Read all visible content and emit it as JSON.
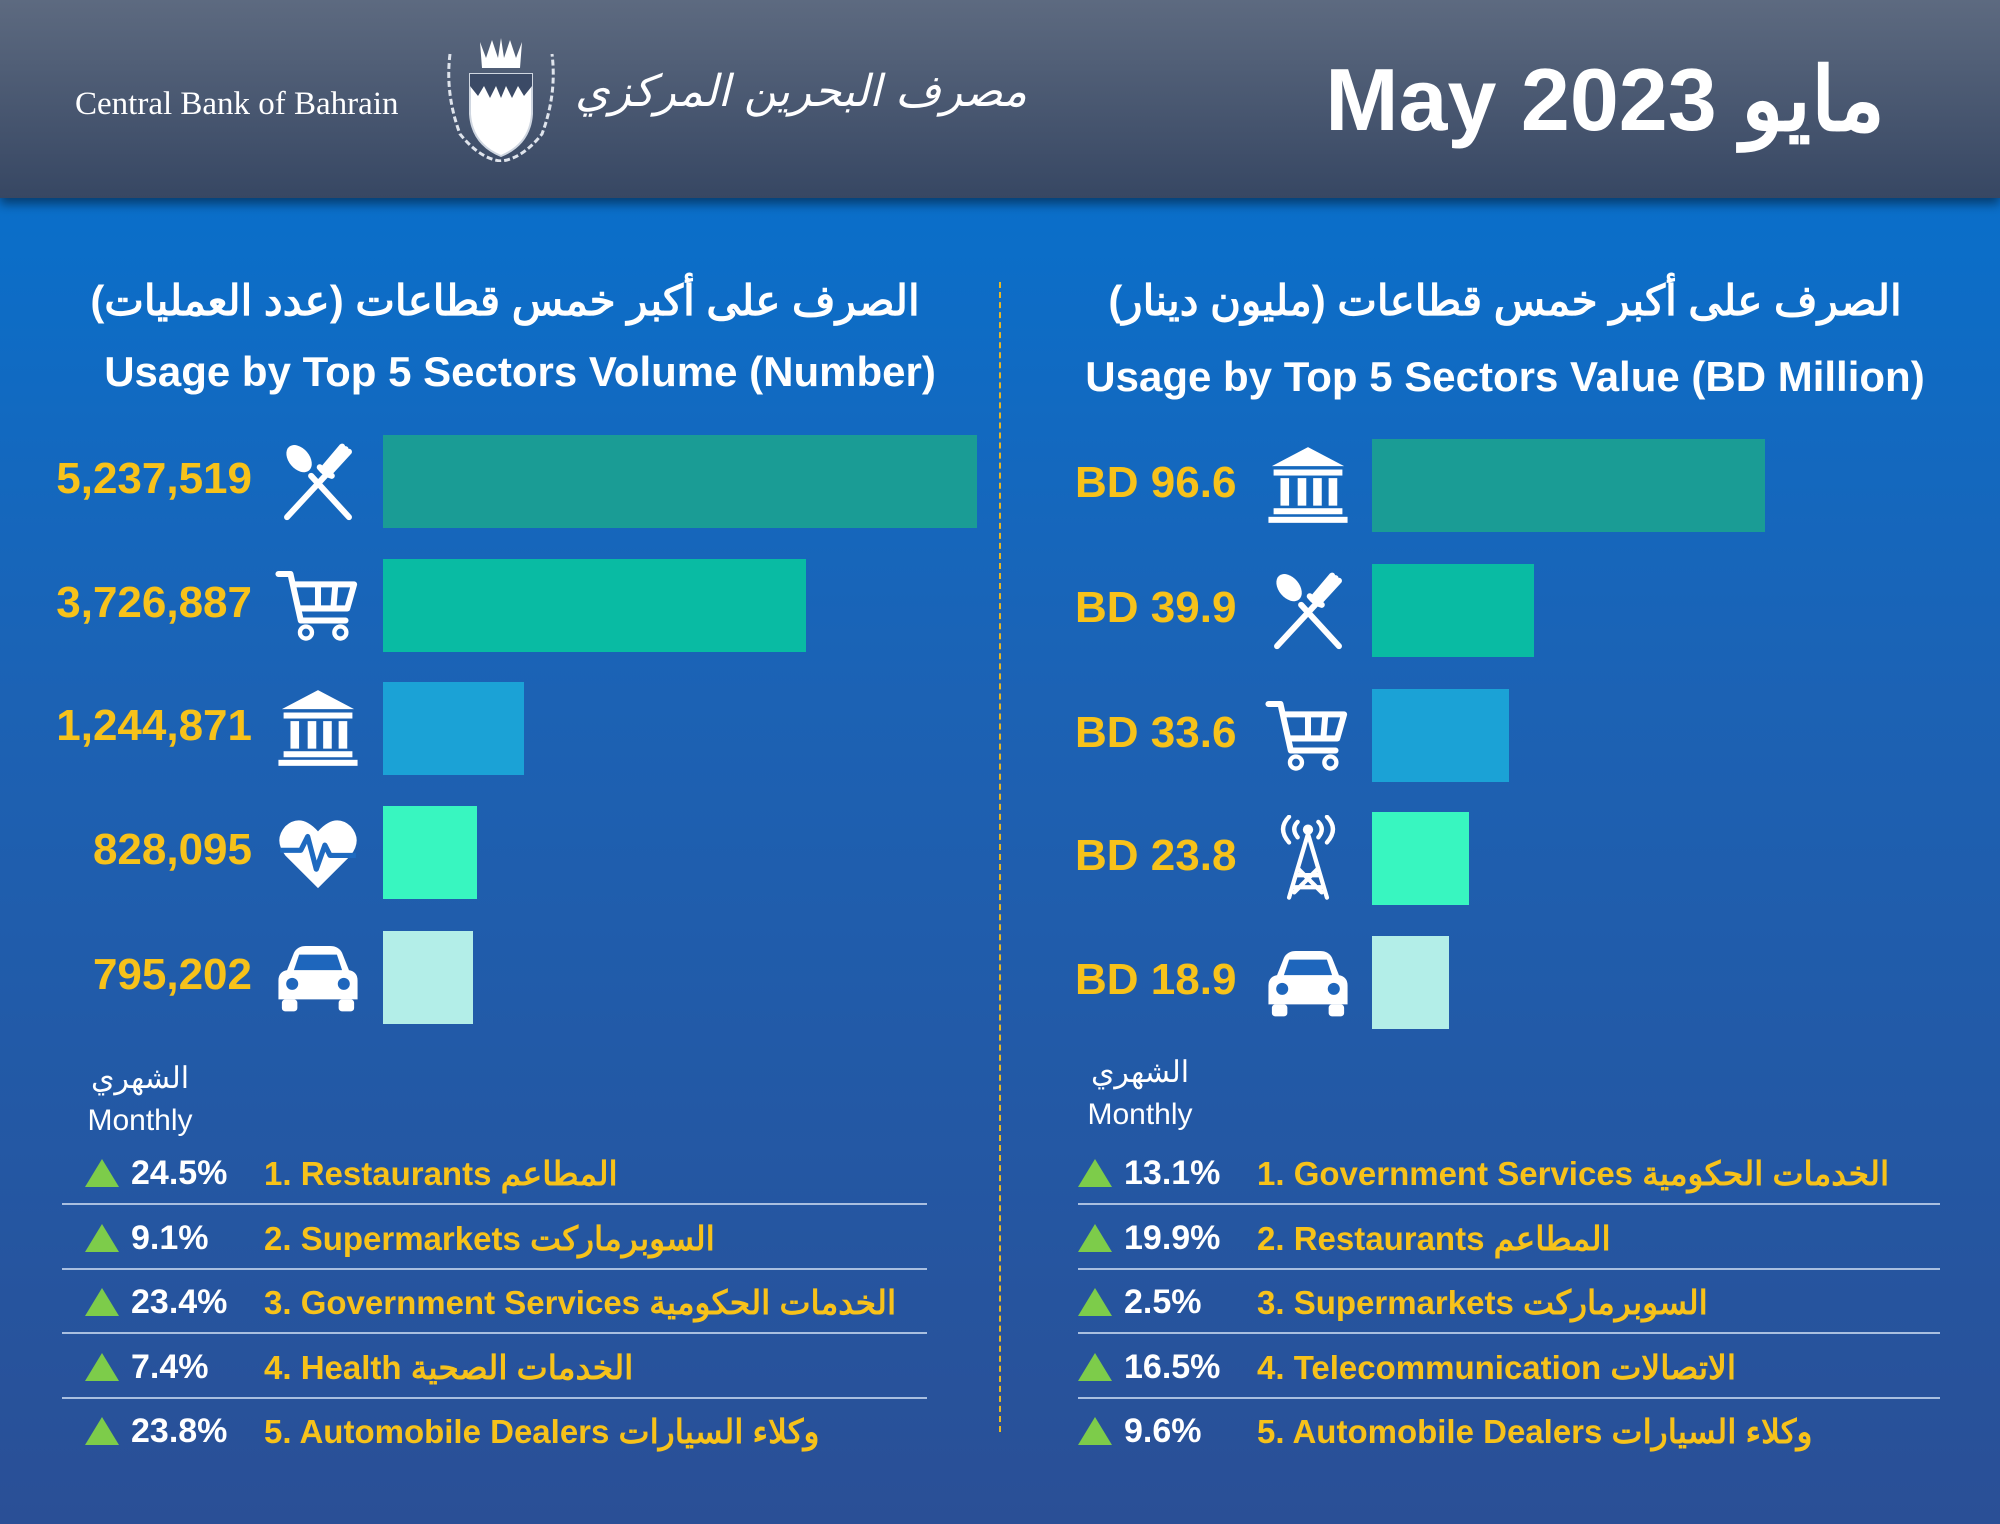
{
  "header": {
    "logo_en": "Central Bank of Bahrain",
    "logo_ar": "مصرف البحرين المركزي",
    "title": "May 2023 مايو"
  },
  "left": {
    "title_ar": "الصرف على أكبر خمس قطاعات (عدد العمليات)",
    "title_en": "Usage by Top 5 Sectors Volume (Number)",
    "monthly_ar": "الشهري",
    "monthly_en": "Monthly",
    "list": [
      {
        "pct": "24.5%",
        "label": "1. Restaurants المطاعم"
      },
      {
        "pct": "9.1%",
        "label": "2. Supermarkets السوبرماركت"
      },
      {
        "pct": "23.4%",
        "label": "3. Government Services الخدمات الحكومية"
      },
      {
        "pct": "7.4%",
        "label": "4. Health الخدمات الصحية"
      },
      {
        "pct": "23.8%",
        "label": "5. Automobile Dealers وكلاء السيارات"
      }
    ]
  },
  "right": {
    "title_ar": "الصرف على أكبر خمس قطاعات (مليون دينار)",
    "title_en": "Usage by Top 5 Sectors Value (BD Million)",
    "monthly_ar": "الشهري",
    "monthly_en": "Monthly",
    "list": [
      {
        "pct": "13.1%",
        "label": "1. Government Services الخدمات الحكومية"
      },
      {
        "pct": "19.9%",
        "label": "2. Restaurants المطاعم"
      },
      {
        "pct": "2.5%",
        "label": "3. Supermarkets السوبرماركت"
      },
      {
        "pct": "16.5%",
        "label": "4. Telecommunication الاتصالات"
      },
      {
        "pct": "9.6%",
        "label": "5. Automobile Dealers وكلاء السيارات"
      }
    ]
  },
  "chart_data": [
    {
      "type": "bar",
      "title": "Usage by Top 5 Sectors Volume (Number)",
      "categories": [
        "Restaurants",
        "Supermarkets",
        "Government Services",
        "Health",
        "Automobile Dealers"
      ],
      "values": [
        5237519,
        3726887,
        1244871,
        828095,
        795202
      ],
      "labels": [
        "5,237,519",
        "3,726,887",
        "1,244,871",
        "828,095",
        "795,202"
      ],
      "icons": [
        "fork-knife-icon",
        "cart-icon",
        "bank-icon",
        "heart-pulse-icon",
        "car-icon"
      ],
      "colors": [
        "#1a9c95",
        "#09bba3",
        "#1ba2d6",
        "#38f6c0",
        "#b3eee8"
      ]
    },
    {
      "type": "bar",
      "title": "Usage by Top 5 Sectors Value (BD Million)",
      "categories": [
        "Government Services",
        "Restaurants",
        "Supermarkets",
        "Telecommunication",
        "Automobile Dealers"
      ],
      "values": [
        96.6,
        39.9,
        33.6,
        23.8,
        18.9
      ],
      "labels": [
        "BD 96.6",
        "BD 39.9",
        "BD 33.6",
        "BD 23.8",
        "BD 18.9"
      ],
      "icons": [
        "bank-icon",
        "fork-knife-icon",
        "cart-icon",
        "tower-icon",
        "car-icon"
      ],
      "colors": [
        "#1a9c95",
        "#09bba3",
        "#1ba2d6",
        "#38f6c0",
        "#b3eee8"
      ]
    }
  ]
}
